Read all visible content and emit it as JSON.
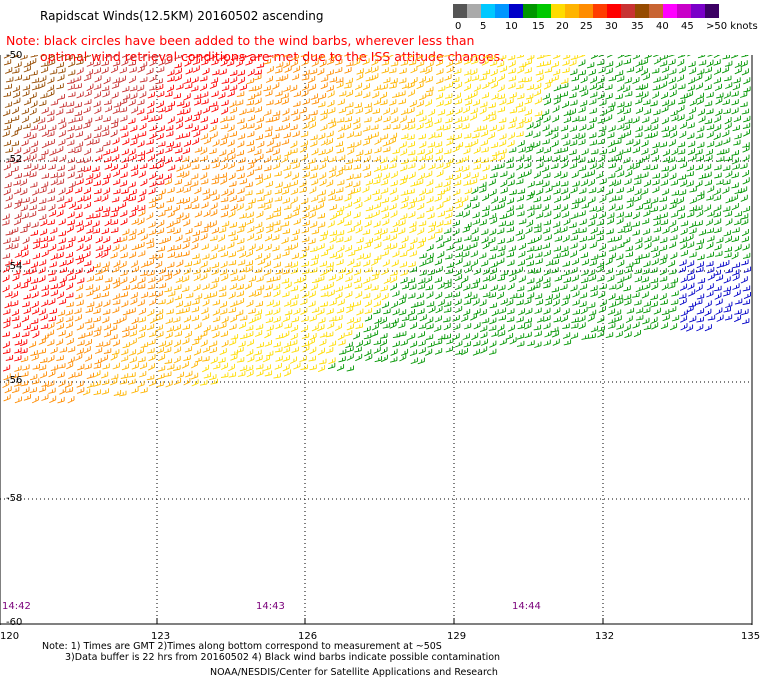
{
  "title": "Rapidscat Winds(12.5KM) 20160502 ascending",
  "note": {
    "line1": "Note: black circles have been added to the wind barbs, wherever less than",
    "line2": "optimal wind retrieval conditions are met due to the ISS attitude changes."
  },
  "legend": {
    "colors": [
      "#555555",
      "#aaaaaa",
      "#00c8ff",
      "#0096ff",
      "#0000c8",
      "#009600",
      "#00c800",
      "#ffdc00",
      "#ffb400",
      "#ff8c00",
      "#ff3c00",
      "#ff0000",
      "#c83232",
      "#964b00",
      "#c86432",
      "#ff00ff",
      "#c800c8",
      "#7a00c8",
      "#3c0064"
    ],
    "labels": [
      "0",
      "5",
      "10",
      "15",
      "20",
      "25",
      "30",
      "35",
      "40",
      "45",
      ">50 knots"
    ]
  },
  "map": {
    "lon_ticks": [
      "120",
      "123",
      "126",
      "129",
      "132",
      "135"
    ],
    "lat_ticks": [
      "-50",
      "-52",
      "-54",
      "-56",
      "-58",
      "-60"
    ],
    "times": [
      "14:42",
      "14:43",
      "14:44"
    ]
  },
  "footer": {
    "line1": "Note: 1) Times are GMT 2)Times along bottom correspond to measurement at ~50S",
    "line2": "3)Data buffer is 22 hrs from 20160502 4) Black wind barbs indicate possible contamination",
    "line3": "NOAA/NESDIS/Center for Satellite Applications and Research"
  }
}
